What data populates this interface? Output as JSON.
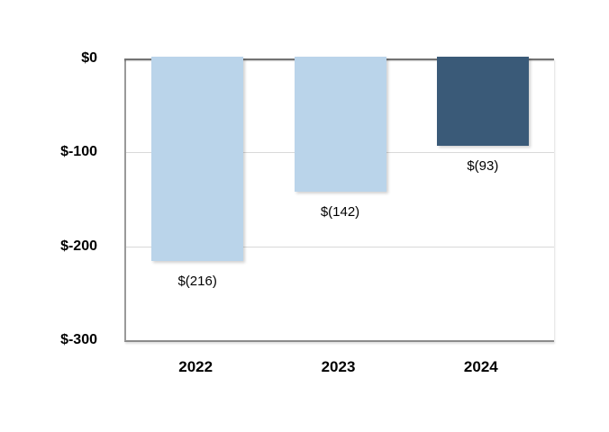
{
  "chart_data": {
    "type": "bar",
    "title": "",
    "xlabel": "",
    "ylabel": "",
    "categories": [
      "2022",
      "2023",
      "2024"
    ],
    "values": [
      -216,
      -142,
      -93
    ],
    "data_labels": [
      "$(216)",
      "$(142)",
      "$(93)"
    ],
    "bar_colors": [
      "#BAD4EA",
      "#BAD4EA",
      "#3A5A78"
    ],
    "ylim": [
      -300,
      0
    ],
    "yticks": [
      {
        "value": 0,
        "label": "$0",
        "gridline": false
      },
      {
        "value": -100,
        "label": "$-100",
        "gridline": true
      },
      {
        "value": -200,
        "label": "$-200",
        "gridline": true
      },
      {
        "value": -300,
        "label": "$-300",
        "gridline": false
      }
    ],
    "grid": "horizontal",
    "legend": "none",
    "data_label_position": "outside-end",
    "colors": {
      "light_bar": "#BAD4EA",
      "dark_bar": "#3A5A78",
      "zero_line": "#737373",
      "axis_line": "#8C8C8C",
      "gridline": "#D9D9D9",
      "text": "#000000",
      "background": "#FFFFFF"
    }
  }
}
